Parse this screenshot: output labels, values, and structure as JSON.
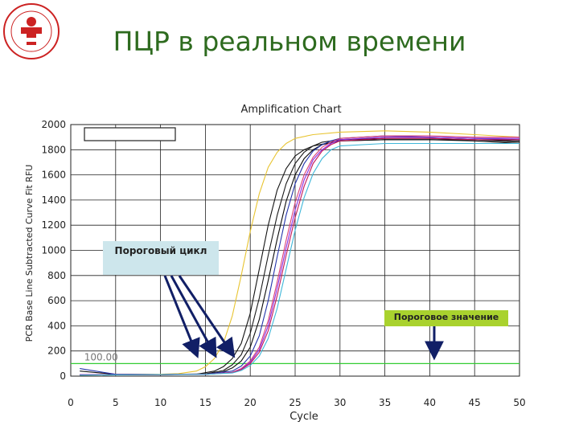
{
  "slide": {
    "title": "ПЦР в реальном времени"
  },
  "callouts": {
    "threshold_cycle": "Пороговый цикл",
    "threshold_value": "Пороговое значение"
  },
  "chart_data": {
    "type": "line",
    "title": "Amplification Chart",
    "xlabel": "Cycle",
    "ylabel": "PCR Base Line Subtracted Curve Fit RFU",
    "xlim": [
      0,
      50
    ],
    "ylim": [
      0,
      2000
    ],
    "xticks": [
      0,
      5,
      10,
      15,
      20,
      25,
      30,
      35,
      40,
      45,
      50
    ],
    "yticks": [
      0,
      200,
      400,
      600,
      800,
      1000,
      1200,
      1400,
      1600,
      1800,
      2000
    ],
    "grid": true,
    "threshold": {
      "value": 100,
      "label": "100.00",
      "color": "#33cc33"
    },
    "legend_box": "top-left, empty",
    "series": [
      {
        "color": "#e8c431",
        "x": [
          1,
          5,
          10,
          12,
          14,
          15,
          16,
          17,
          18,
          19,
          20,
          21,
          22,
          23,
          24,
          25,
          27,
          30,
          35,
          40,
          45,
          50
        ],
        "y": [
          10,
          12,
          15,
          20,
          40,
          75,
          140,
          260,
          480,
          800,
          1150,
          1450,
          1660,
          1780,
          1850,
          1890,
          1920,
          1940,
          1950,
          1940,
          1920,
          1900
        ]
      },
      {
        "color": "#111111",
        "x": [
          1,
          5,
          10,
          14,
          16,
          17,
          18,
          19,
          20,
          21,
          22,
          23,
          24,
          25,
          26,
          27,
          30,
          35,
          40,
          45,
          50
        ],
        "y": [
          40,
          15,
          12,
          15,
          40,
          75,
          140,
          260,
          500,
          850,
          1200,
          1480,
          1650,
          1750,
          1800,
          1830,
          1870,
          1880,
          1880,
          1880,
          1870
        ]
      },
      {
        "color": "#1a1a1a",
        "x": [
          1,
          5,
          10,
          15,
          17,
          18,
          19,
          20,
          21,
          22,
          23,
          24,
          25,
          26,
          27,
          28,
          30,
          35,
          40,
          45,
          50
        ],
        "y": [
          10,
          12,
          12,
          18,
          45,
          90,
          170,
          340,
          620,
          960,
          1280,
          1530,
          1690,
          1780,
          1830,
          1860,
          1880,
          1890,
          1890,
          1880,
          1860
        ]
      },
      {
        "color": "#0a0a0a",
        "x": [
          1,
          5,
          10,
          15,
          17,
          18,
          19,
          20,
          21,
          22,
          23,
          24,
          25,
          26,
          27,
          28,
          30,
          35,
          40,
          45,
          50
        ],
        "y": [
          8,
          10,
          12,
          15,
          35,
          65,
          120,
          230,
          450,
          760,
          1090,
          1390,
          1600,
          1730,
          1800,
          1840,
          1870,
          1880,
          1880,
          1870,
          1850
        ]
      },
      {
        "color": "#2233aa",
        "x": [
          1,
          5,
          10,
          15,
          18,
          19,
          20,
          21,
          22,
          23,
          24,
          25,
          26,
          27,
          28,
          29,
          30,
          35,
          40,
          45,
          50
        ],
        "y": [
          60,
          15,
          12,
          15,
          40,
          80,
          160,
          320,
          600,
          950,
          1280,
          1530,
          1690,
          1790,
          1840,
          1870,
          1890,
          1910,
          1900,
          1890,
          1880
        ]
      },
      {
        "color": "#d93f7a",
        "x": [
          1,
          5,
          10,
          15,
          18,
          19,
          20,
          21,
          22,
          23,
          24,
          25,
          26,
          27,
          28,
          29,
          30,
          35,
          40,
          45,
          50
        ],
        "y": [
          10,
          10,
          12,
          14,
          30,
          60,
          120,
          230,
          440,
          750,
          1080,
          1380,
          1600,
          1740,
          1820,
          1860,
          1890,
          1910,
          1910,
          1900,
          1900
        ]
      },
      {
        "color": "#8a2be2",
        "x": [
          1,
          5,
          10,
          15,
          18,
          19,
          20,
          21,
          22,
          23,
          24,
          25,
          26,
          27,
          28,
          29,
          30,
          35,
          40,
          45,
          50
        ],
        "y": [
          12,
          10,
          12,
          14,
          28,
          55,
          110,
          210,
          400,
          700,
          1020,
          1320,
          1560,
          1720,
          1800,
          1850,
          1880,
          1900,
          1900,
          1890,
          1890
        ]
      },
      {
        "color": "#c2185b",
        "x": [
          1,
          5,
          10,
          15,
          18,
          19,
          20,
          21,
          22,
          23,
          24,
          25,
          26,
          27,
          28,
          29,
          30,
          35,
          40,
          45,
          50
        ],
        "y": [
          10,
          10,
          12,
          14,
          28,
          52,
          100,
          190,
          360,
          640,
          960,
          1260,
          1510,
          1690,
          1790,
          1840,
          1870,
          1890,
          1890,
          1880,
          1880
        ]
      },
      {
        "color": "#3fb7d9",
        "x": [
          1,
          5,
          10,
          15,
          18,
          19,
          20,
          21,
          22,
          23,
          24,
          25,
          26,
          27,
          28,
          29,
          30,
          35,
          40,
          45,
          50
        ],
        "y": [
          8,
          10,
          12,
          14,
          25,
          45,
          85,
          160,
          300,
          540,
          850,
          1160,
          1420,
          1610,
          1730,
          1800,
          1830,
          1850,
          1850,
          1850,
          1850
        ]
      }
    ],
    "arrows_to_cycle": [
      14,
      16,
      18
    ],
    "arrow_to_threshold_cycle": 40.5
  }
}
